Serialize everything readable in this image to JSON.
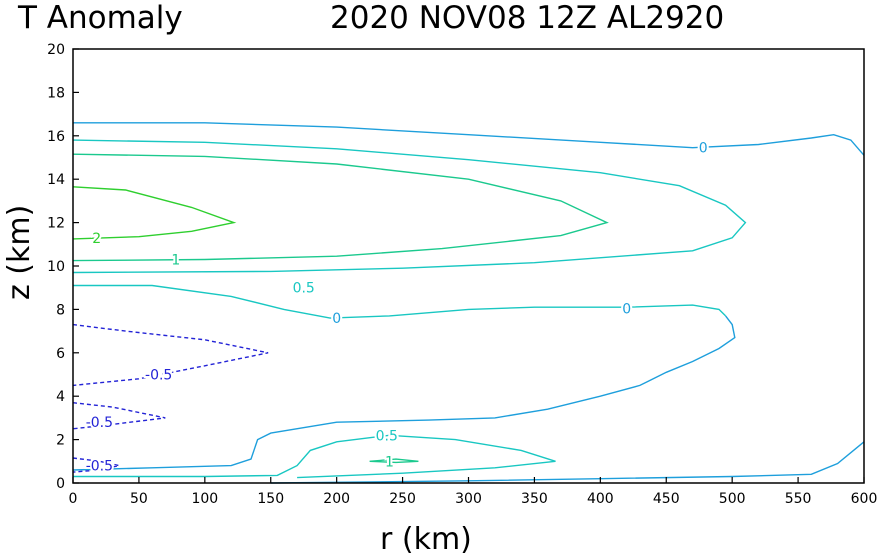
{
  "header": {
    "title_left": "T Anomaly",
    "title_right": "2020  NOV08  12Z   AL2920"
  },
  "chart_data": {
    "type": "contour",
    "title": "T Anomaly",
    "subtitle": "2020  NOV08  12Z   AL2920",
    "xlabel": "r (km)",
    "ylabel": "z (km)",
    "xlim": [
      0,
      600
    ],
    "ylim": [
      0,
      20
    ],
    "xticks": [
      0,
      50,
      100,
      150,
      200,
      250,
      300,
      350,
      400,
      450,
      500,
      550,
      600
    ],
    "yticks": [
      0,
      2,
      4,
      6,
      8,
      10,
      12,
      14,
      16,
      18,
      20
    ],
    "grid": false,
    "colors": {
      "0": "#1e9fdc",
      "0.5": "#19c7c2",
      "1": "#1bc98e",
      "2": "#2fcf2f",
      "-0.5": "#2323d6"
    },
    "contours": [
      {
        "level": "0",
        "style": "solid",
        "label_at": [
          [
            478,
            15.45
          ]
        ],
        "points": [
          [
            0,
            16.6
          ],
          [
            100,
            16.6
          ],
          [
            200,
            16.4
          ],
          [
            300,
            16.05
          ],
          [
            400,
            15.7
          ],
          [
            470,
            15.45
          ],
          [
            520,
            15.6
          ],
          [
            560,
            15.9
          ],
          [
            577,
            16.05
          ],
          [
            590,
            15.8
          ],
          [
            600,
            15.1
          ]
        ]
      },
      {
        "level": "0.5",
        "style": "solid",
        "points": [
          [
            0,
            15.8
          ],
          [
            100,
            15.7
          ],
          [
            200,
            15.4
          ],
          [
            300,
            14.9
          ],
          [
            400,
            14.3
          ],
          [
            460,
            13.7
          ],
          [
            495,
            12.8
          ],
          [
            510,
            12.0
          ],
          [
            500,
            11.3
          ],
          [
            470,
            10.7
          ],
          [
            350,
            10.15
          ],
          [
            250,
            9.9
          ],
          [
            150,
            9.75
          ],
          [
            0,
            9.7
          ]
        ]
      },
      {
        "level": "1",
        "style": "solid",
        "label_at": [
          [
            78,
            10.3
          ]
        ],
        "points": [
          [
            0,
            15.15
          ],
          [
            100,
            15.05
          ],
          [
            200,
            14.7
          ],
          [
            300,
            14.0
          ],
          [
            370,
            13.0
          ],
          [
            405,
            12.0
          ],
          [
            370,
            11.4
          ],
          [
            280,
            10.8
          ],
          [
            200,
            10.45
          ],
          [
            100,
            10.3
          ],
          [
            0,
            10.25
          ]
        ]
      },
      {
        "level": "2",
        "style": "solid",
        "label_at": [
          [
            18,
            11.3
          ]
        ],
        "points": [
          [
            0,
            13.65
          ],
          [
            40,
            13.5
          ],
          [
            90,
            12.7
          ],
          [
            122,
            12.0
          ],
          [
            90,
            11.6
          ],
          [
            50,
            11.35
          ],
          [
            0,
            11.25
          ]
        ]
      },
      {
        "level": "0.5",
        "style": "solid",
        "label_at": [
          [
            175,
            9.0
          ]
        ],
        "points": [
          [
            0,
            9.1
          ],
          [
            60,
            9.1
          ],
          [
            120,
            8.6
          ],
          [
            160,
            8.0
          ],
          [
            195,
            7.6
          ],
          [
            240,
            7.7
          ],
          [
            300,
            8.0
          ],
          [
            350,
            8.1
          ],
          [
            420,
            8.1
          ],
          [
            470,
            8.2
          ],
          [
            490,
            8.0
          ],
          [
            495,
            7.7
          ]
        ]
      },
      {
        "level": "0",
        "style": "solid",
        "label_at": [
          [
            200,
            7.6
          ],
          [
            420,
            8.05
          ]
        ],
        "points": [
          [
            495,
            7.7
          ],
          [
            500,
            7.3
          ],
          [
            502,
            6.7
          ],
          [
            490,
            6.2
          ],
          [
            470,
            5.6
          ],
          [
            450,
            5.1
          ],
          [
            430,
            4.5
          ],
          [
            400,
            4.0
          ],
          [
            360,
            3.4
          ],
          [
            320,
            3.0
          ],
          [
            270,
            2.9
          ],
          [
            200,
            2.8
          ],
          [
            150,
            2.3
          ],
          [
            140,
            2.0
          ],
          [
            135,
            1.1
          ],
          [
            120,
            0.8
          ],
          [
            60,
            0.7
          ],
          [
            0,
            0.6
          ]
        ]
      },
      {
        "level": "0.5",
        "style": "solid",
        "label_at": [
          [
            238,
            2.2
          ]
        ],
        "points": [
          [
            0,
            0.3
          ],
          [
            100,
            0.3
          ],
          [
            155,
            0.35
          ],
          [
            170,
            0.8
          ],
          [
            180,
            1.5
          ],
          [
            200,
            1.9
          ],
          [
            240,
            2.2
          ],
          [
            290,
            2.0
          ],
          [
            340,
            1.5
          ],
          [
            366,
            1.0
          ],
          [
            320,
            0.7
          ],
          [
            250,
            0.45
          ],
          [
            170,
            0.25
          ]
        ]
      },
      {
        "level": "1",
        "style": "solid",
        "label_at": [
          [
            240,
            1.0
          ]
        ],
        "points": [
          [
            225,
            1.0
          ],
          [
            245,
            1.1
          ],
          [
            262,
            1.0
          ],
          [
            245,
            0.95
          ],
          [
            225,
            1.0
          ]
        ]
      },
      {
        "level": "0",
        "style": "solid",
        "points": [
          [
            150,
            0.0
          ],
          [
            300,
            0.1
          ],
          [
            400,
            0.2
          ],
          [
            500,
            0.3
          ],
          [
            560,
            0.4
          ],
          [
            580,
            0.9
          ],
          [
            600,
            1.9
          ]
        ]
      },
      {
        "level": "-0.5",
        "style": "dashed",
        "label_at": [
          [
            65,
            5.0
          ]
        ],
        "points": [
          [
            0,
            7.3
          ],
          [
            40,
            7.0
          ],
          [
            100,
            6.6
          ],
          [
            148,
            6.0
          ],
          [
            100,
            5.4
          ],
          [
            50,
            4.8
          ],
          [
            0,
            4.5
          ]
        ]
      },
      {
        "level": "-0.5",
        "style": "dashed",
        "label_at": [
          [
            20,
            2.8
          ]
        ],
        "points": [
          [
            0,
            3.7
          ],
          [
            30,
            3.5
          ],
          [
            70,
            3.0
          ],
          [
            30,
            2.7
          ],
          [
            0,
            2.5
          ]
        ]
      },
      {
        "level": "-0.5",
        "style": "dashed",
        "label_at": [
          [
            20,
            0.8
          ]
        ],
        "points": [
          [
            0,
            1.15
          ],
          [
            20,
            1.0
          ],
          [
            35,
            0.8
          ],
          [
            20,
            0.6
          ],
          [
            0,
            0.5
          ]
        ]
      }
    ]
  }
}
